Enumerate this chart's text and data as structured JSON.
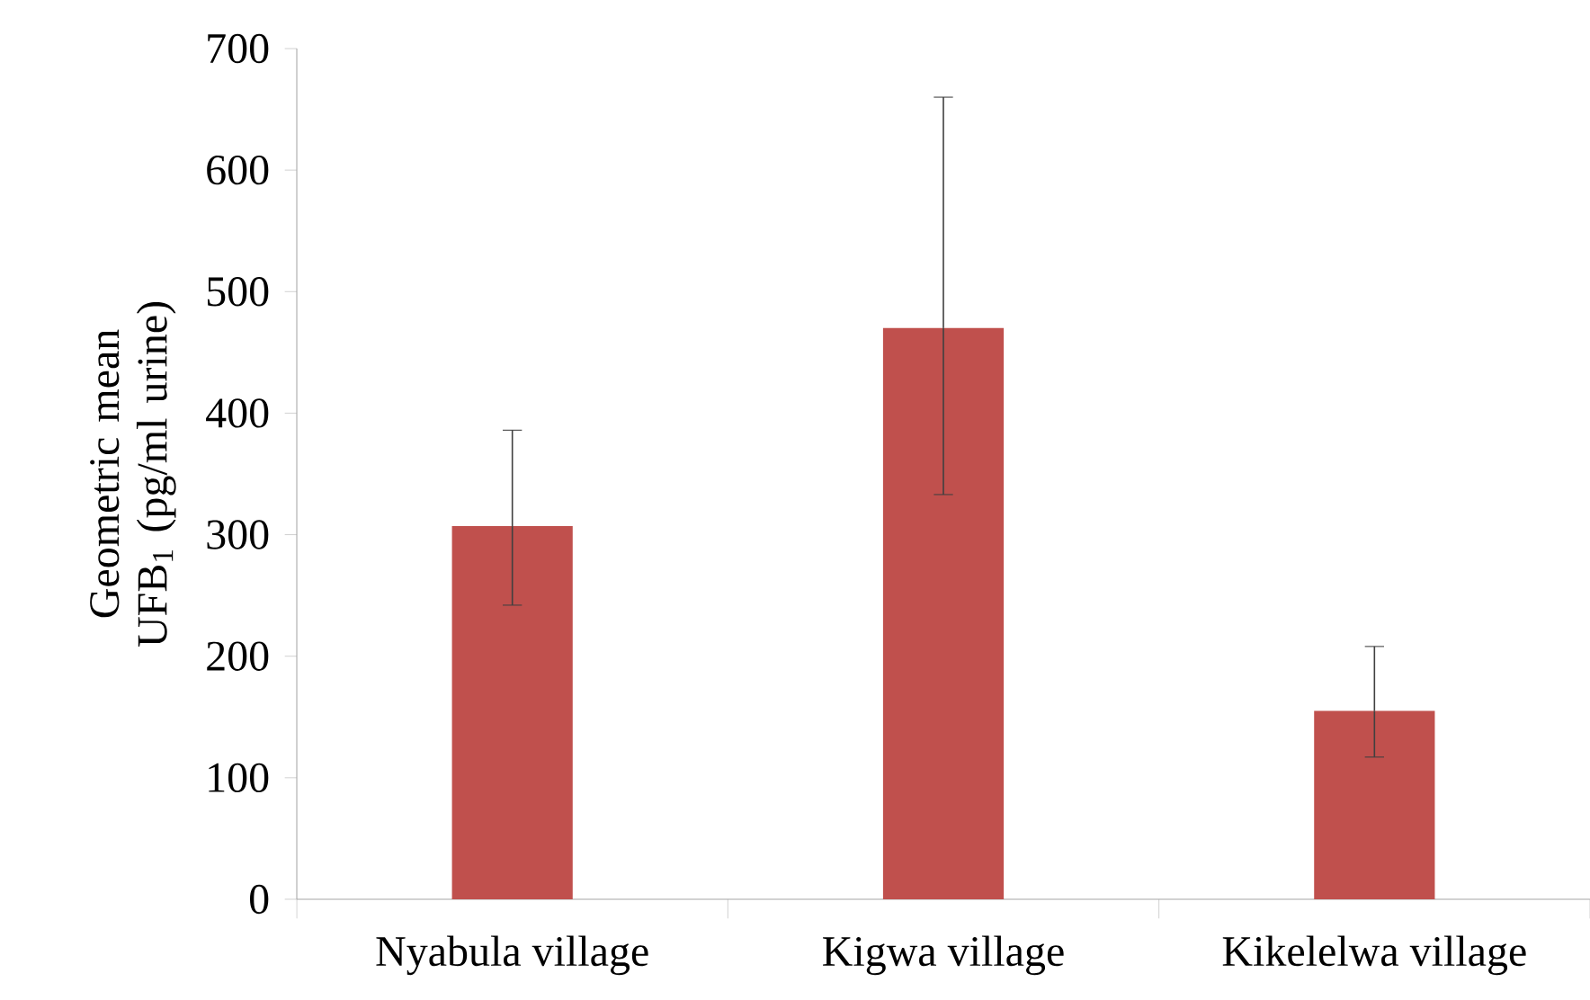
{
  "chart_data": {
    "type": "bar",
    "ylabel": "Geometric mean UFB$_{1}$ (pg/ml urine)",
    "categories": [
      "Nyabula village",
      "Kigwa village",
      "Kikelelwa village"
    ],
    "values": [
      307,
      470,
      155
    ],
    "errors": [
      [
        242,
        386
      ],
      [
        333,
        660
      ],
      [
        117,
        208
      ]
    ],
    "color": "#c0504d",
    "ylim": [
      0,
      700
    ],
    "yticks": [
      0,
      100,
      200,
      300,
      400,
      500,
      600,
      700
    ]
  }
}
